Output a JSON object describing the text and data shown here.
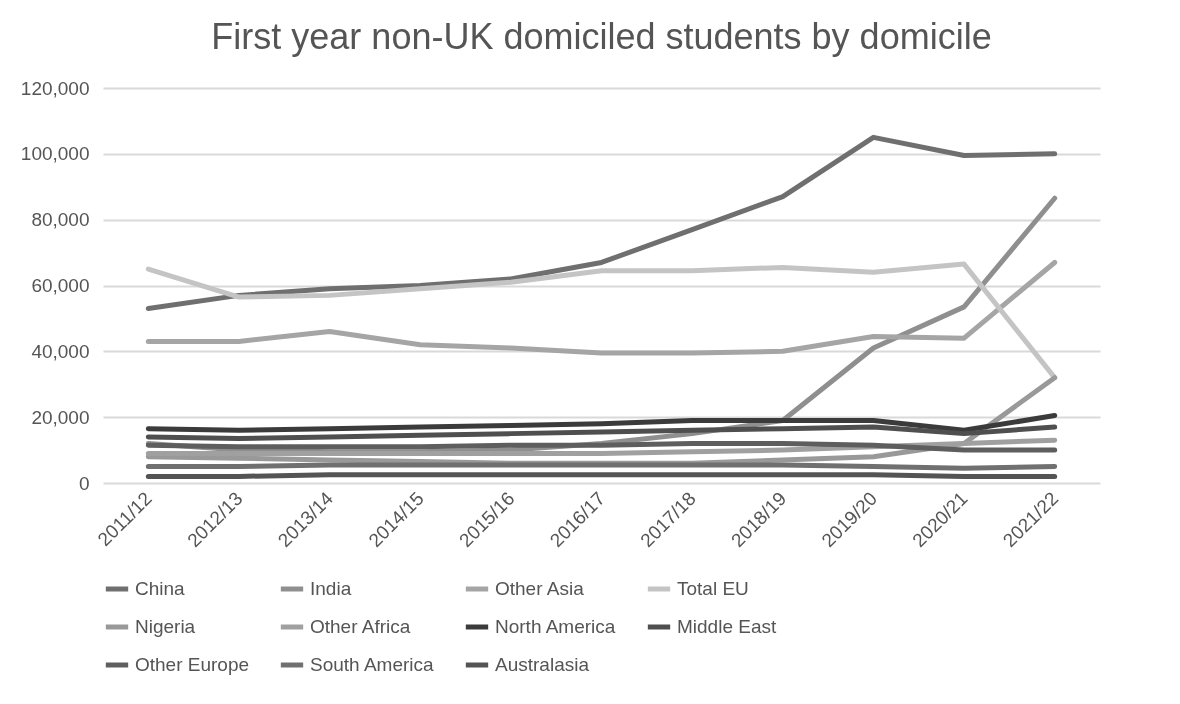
{
  "chart_data": {
    "type": "line",
    "title": "First year non-UK domiciled students by domicile",
    "categories": [
      "2011/12",
      "2012/13",
      "2013/14",
      "2014/15",
      "2015/16",
      "2016/17",
      "2017/18",
      "2018/19",
      "2019/20",
      "2020/21",
      "2021/22"
    ],
    "ylim": [
      0,
      120000
    ],
    "yticks": [
      {
        "value": 0,
        "label": "0"
      },
      {
        "value": 20000,
        "label": "20,000"
      },
      {
        "value": 40000,
        "label": "40,000"
      },
      {
        "value": 60000,
        "label": "60,000"
      },
      {
        "value": 80000,
        "label": "80,000"
      },
      {
        "value": 100000,
        "label": "100,000"
      },
      {
        "value": 120000,
        "label": "120,000"
      }
    ],
    "grid": "y",
    "legend": "bottom",
    "line_style": "solid",
    "marker": "none",
    "series": [
      {
        "name": "China",
        "color": "#6f6f6f",
        "values": [
          53000,
          57000,
          59000,
          60000,
          62000,
          67000,
          77000,
          87000,
          105000,
          99500,
          100000
        ]
      },
      {
        "name": "India",
        "color": "#8f8f8f",
        "values": [
          12000,
          10000,
          9500,
          9500,
          10000,
          12000,
          15000,
          19000,
          41000,
          53500,
          86500
        ]
      },
      {
        "name": "Other Asia",
        "color": "#a5a5a5",
        "values": [
          43000,
          43000,
          46000,
          42000,
          41000,
          39500,
          39500,
          40000,
          44500,
          44000,
          67000
        ]
      },
      {
        "name": "Total EU",
        "color": "#c4c4c4",
        "values": [
          65000,
          56500,
          57000,
          59000,
          61000,
          64500,
          64500,
          65500,
          64000,
          66500,
          32000
        ]
      },
      {
        "name": "Nigeria",
        "color": "#999999",
        "values": [
          8000,
          7500,
          7000,
          6500,
          6000,
          6000,
          6000,
          7000,
          8000,
          12000,
          32000
        ]
      },
      {
        "name": "Other Africa",
        "color": "#a0a0a0",
        "values": [
          9000,
          9000,
          9000,
          9000,
          9000,
          9000,
          9500,
          10000,
          11000,
          12000,
          13000
        ]
      },
      {
        "name": "North America",
        "color": "#3b3b3b",
        "values": [
          16500,
          16000,
          16500,
          17000,
          17500,
          18000,
          19000,
          19000,
          19000,
          16000,
          20500
        ]
      },
      {
        "name": "Middle East",
        "color": "#4f4f4f",
        "values": [
          14000,
          13500,
          14000,
          14500,
          15000,
          15500,
          16000,
          16500,
          17000,
          15000,
          17000
        ]
      },
      {
        "name": "Other Europe",
        "color": "#5e5e5e",
        "values": [
          11500,
          11000,
          11000,
          11000,
          11500,
          11500,
          12000,
          12000,
          11500,
          10000,
          10000
        ]
      },
      {
        "name": "South America",
        "color": "#707070",
        "values": [
          5000,
          5000,
          5500,
          5500,
          5500,
          5500,
          5500,
          5500,
          5000,
          4500,
          5000
        ]
      },
      {
        "name": "Australasia",
        "color": "#545454",
        "values": [
          2000,
          2000,
          2500,
          2500,
          2500,
          2500,
          2500,
          2500,
          2500,
          2000,
          2000
        ]
      }
    ]
  }
}
